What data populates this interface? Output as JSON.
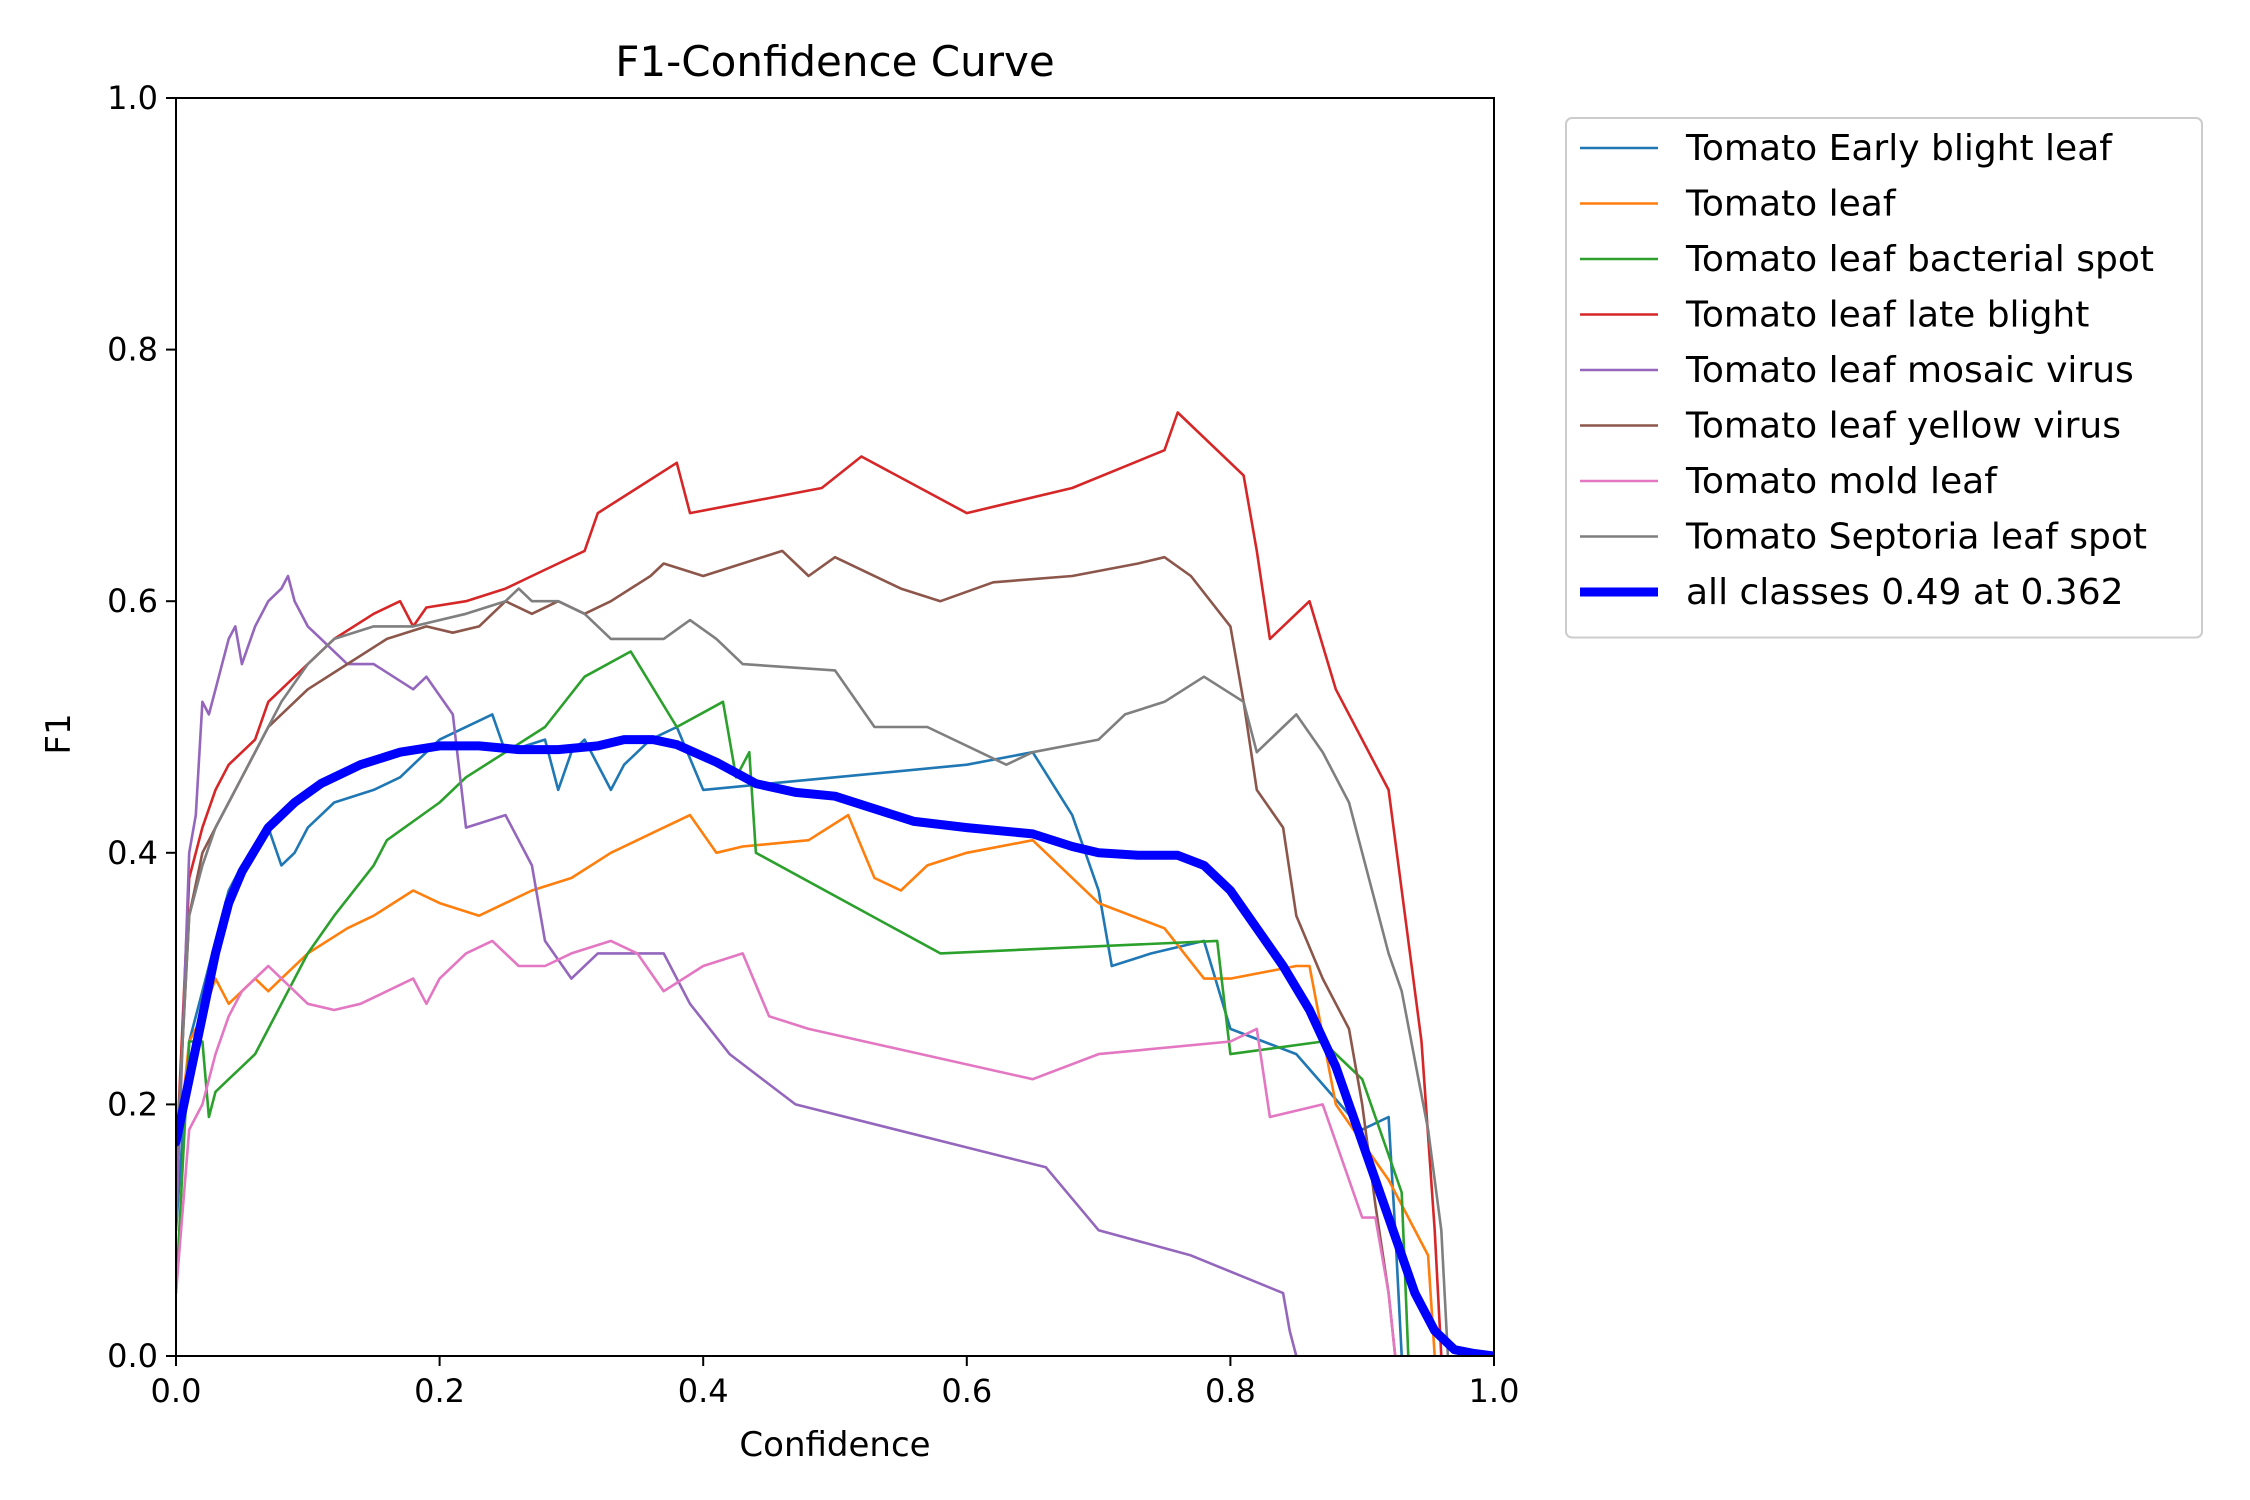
{
  "chart_data": {
    "type": "line",
    "title": "F1-Confidence Curve",
    "xlabel": "Confidence",
    "ylabel": "F1",
    "xlim": [
      0.0,
      1.0
    ],
    "ylim": [
      0.0,
      1.0
    ],
    "xticks": [
      "0.0",
      "0.2",
      "0.4",
      "0.6",
      "0.8",
      "1.0"
    ],
    "yticks": [
      "0.0",
      "0.2",
      "0.4",
      "0.6",
      "0.8",
      "1.0"
    ],
    "grid": false,
    "legend_position": "outside-right-top",
    "series": [
      {
        "name": "Tomato Early blight leaf",
        "color": "#1f77b4",
        "x": [
          0.0,
          0.01,
          0.02,
          0.03,
          0.04,
          0.05,
          0.06,
          0.07,
          0.08,
          0.09,
          0.1,
          0.11,
          0.12,
          0.15,
          0.17,
          0.2,
          0.24,
          0.25,
          0.28,
          0.29,
          0.3,
          0.31,
          0.33,
          0.34,
          0.36,
          0.38,
          0.4,
          0.45,
          0.5,
          0.6,
          0.65,
          0.68,
          0.7,
          0.71,
          0.74,
          0.78,
          0.8,
          0.85,
          0.9,
          0.92,
          0.925,
          0.93
        ],
        "y": [
          0.1,
          0.25,
          0.29,
          0.33,
          0.37,
          0.39,
          0.4,
          0.42,
          0.39,
          0.4,
          0.42,
          0.43,
          0.44,
          0.45,
          0.46,
          0.49,
          0.51,
          0.48,
          0.49,
          0.45,
          0.48,
          0.49,
          0.45,
          0.47,
          0.49,
          0.5,
          0.45,
          0.455,
          0.46,
          0.47,
          0.48,
          0.43,
          0.37,
          0.31,
          0.32,
          0.33,
          0.26,
          0.24,
          0.18,
          0.19,
          0.1,
          0.0
        ]
      },
      {
        "name": "Tomato leaf",
        "color": "#ff7f0e",
        "x": [
          0.0,
          0.01,
          0.02,
          0.03,
          0.04,
          0.05,
          0.06,
          0.07,
          0.08,
          0.1,
          0.13,
          0.15,
          0.18,
          0.2,
          0.23,
          0.25,
          0.27,
          0.3,
          0.33,
          0.35,
          0.37,
          0.39,
          0.41,
          0.43,
          0.48,
          0.51,
          0.53,
          0.55,
          0.57,
          0.6,
          0.65,
          0.7,
          0.75,
          0.78,
          0.8,
          0.85,
          0.86,
          0.88,
          0.92,
          0.95,
          0.955
        ],
        "y": [
          0.15,
          0.25,
          0.27,
          0.3,
          0.28,
          0.29,
          0.3,
          0.29,
          0.3,
          0.32,
          0.34,
          0.35,
          0.37,
          0.36,
          0.35,
          0.36,
          0.37,
          0.38,
          0.4,
          0.41,
          0.42,
          0.43,
          0.4,
          0.405,
          0.41,
          0.43,
          0.38,
          0.37,
          0.39,
          0.4,
          0.41,
          0.36,
          0.34,
          0.3,
          0.3,
          0.31,
          0.31,
          0.2,
          0.14,
          0.08,
          0.0
        ]
      },
      {
        "name": "Tomato leaf bacterial spot",
        "color": "#2ca02c",
        "x": [
          0.0,
          0.01,
          0.02,
          0.025,
          0.03,
          0.04,
          0.05,
          0.06,
          0.07,
          0.08,
          0.1,
          0.12,
          0.15,
          0.16,
          0.2,
          0.22,
          0.25,
          0.28,
          0.31,
          0.345,
          0.38,
          0.415,
          0.425,
          0.435,
          0.44,
          0.58,
          0.79,
          0.8,
          0.87,
          0.9,
          0.93,
          0.935
        ],
        "y": [
          0.05,
          0.25,
          0.25,
          0.19,
          0.21,
          0.22,
          0.23,
          0.24,
          0.26,
          0.28,
          0.32,
          0.35,
          0.39,
          0.41,
          0.44,
          0.46,
          0.48,
          0.5,
          0.54,
          0.56,
          0.5,
          0.52,
          0.46,
          0.48,
          0.4,
          0.32,
          0.33,
          0.24,
          0.25,
          0.22,
          0.13,
          0.0
        ]
      },
      {
        "name": "Tomato leaf late blight",
        "color": "#d62728",
        "x": [
          0.0,
          0.01,
          0.02,
          0.03,
          0.04,
          0.05,
          0.06,
          0.07,
          0.08,
          0.1,
          0.12,
          0.15,
          0.17,
          0.18,
          0.19,
          0.22,
          0.25,
          0.27,
          0.29,
          0.31,
          0.32,
          0.35,
          0.38,
          0.39,
          0.49,
          0.52,
          0.6,
          0.68,
          0.75,
          0.76,
          0.81,
          0.82,
          0.83,
          0.86,
          0.88,
          0.92,
          0.945,
          0.955,
          0.96
        ],
        "y": [
          0.15,
          0.38,
          0.42,
          0.45,
          0.47,
          0.48,
          0.49,
          0.52,
          0.53,
          0.55,
          0.57,
          0.59,
          0.6,
          0.58,
          0.595,
          0.6,
          0.61,
          0.62,
          0.63,
          0.64,
          0.67,
          0.69,
          0.71,
          0.67,
          0.69,
          0.715,
          0.67,
          0.69,
          0.72,
          0.75,
          0.7,
          0.64,
          0.57,
          0.6,
          0.53,
          0.45,
          0.25,
          0.1,
          0.0
        ]
      },
      {
        "name": "Tomato leaf mosaic virus",
        "color": "#9467bd",
        "x": [
          0.0,
          0.01,
          0.015,
          0.02,
          0.025,
          0.03,
          0.035,
          0.04,
          0.045,
          0.05,
          0.06,
          0.07,
          0.08,
          0.085,
          0.09,
          0.1,
          0.11,
          0.13,
          0.15,
          0.18,
          0.19,
          0.21,
          0.22,
          0.25,
          0.27,
          0.28,
          0.3,
          0.32,
          0.35,
          0.37,
          0.39,
          0.42,
          0.47,
          0.66,
          0.7,
          0.77,
          0.84,
          0.845,
          0.85
        ],
        "y": [
          0.1,
          0.4,
          0.43,
          0.52,
          0.51,
          0.53,
          0.55,
          0.57,
          0.58,
          0.55,
          0.58,
          0.6,
          0.61,
          0.62,
          0.6,
          0.58,
          0.57,
          0.55,
          0.55,
          0.53,
          0.54,
          0.51,
          0.42,
          0.43,
          0.39,
          0.33,
          0.3,
          0.32,
          0.32,
          0.32,
          0.28,
          0.24,
          0.2,
          0.15,
          0.1,
          0.08,
          0.05,
          0.02,
          0.0
        ]
      },
      {
        "name": "Tomato leaf yellow virus",
        "color": "#8c564b",
        "x": [
          0.0,
          0.01,
          0.02,
          0.03,
          0.04,
          0.05,
          0.06,
          0.07,
          0.08,
          0.1,
          0.13,
          0.16,
          0.19,
          0.21,
          0.23,
          0.25,
          0.27,
          0.29,
          0.31,
          0.33,
          0.36,
          0.37,
          0.4,
          0.46,
          0.48,
          0.5,
          0.55,
          0.58,
          0.62,
          0.68,
          0.73,
          0.75,
          0.77,
          0.8,
          0.81,
          0.82,
          0.84,
          0.85,
          0.87,
          0.89,
          0.9,
          0.91,
          0.92,
          0.925
        ],
        "y": [
          0.15,
          0.35,
          0.4,
          0.42,
          0.44,
          0.46,
          0.48,
          0.5,
          0.51,
          0.53,
          0.55,
          0.57,
          0.58,
          0.575,
          0.58,
          0.6,
          0.59,
          0.6,
          0.59,
          0.6,
          0.62,
          0.63,
          0.62,
          0.64,
          0.62,
          0.635,
          0.61,
          0.6,
          0.615,
          0.62,
          0.63,
          0.635,
          0.62,
          0.58,
          0.52,
          0.45,
          0.42,
          0.35,
          0.3,
          0.26,
          0.2,
          0.12,
          0.05,
          0.0
        ]
      },
      {
        "name": "Tomato mold leaf",
        "color": "#e377c2",
        "x": [
          0.0,
          0.01,
          0.02,
          0.03,
          0.04,
          0.05,
          0.06,
          0.07,
          0.08,
          0.09,
          0.1,
          0.12,
          0.14,
          0.16,
          0.18,
          0.19,
          0.2,
          0.22,
          0.24,
          0.26,
          0.28,
          0.3,
          0.33,
          0.35,
          0.37,
          0.4,
          0.43,
          0.45,
          0.48,
          0.65,
          0.7,
          0.8,
          0.82,
          0.83,
          0.87,
          0.9,
          0.91,
          0.92,
          0.925
        ],
        "y": [
          0.05,
          0.18,
          0.2,
          0.24,
          0.27,
          0.29,
          0.3,
          0.31,
          0.3,
          0.29,
          0.28,
          0.275,
          0.28,
          0.29,
          0.3,
          0.28,
          0.3,
          0.32,
          0.33,
          0.31,
          0.31,
          0.32,
          0.33,
          0.32,
          0.29,
          0.31,
          0.32,
          0.27,
          0.26,
          0.22,
          0.24,
          0.25,
          0.26,
          0.19,
          0.2,
          0.11,
          0.11,
          0.05,
          0.0
        ]
      },
      {
        "name": "Tomato Septoria leaf spot",
        "color": "#7f7f7f",
        "x": [
          0.0,
          0.01,
          0.02,
          0.03,
          0.04,
          0.05,
          0.06,
          0.08,
          0.1,
          0.12,
          0.15,
          0.18,
          0.22,
          0.25,
          0.26,
          0.27,
          0.29,
          0.31,
          0.33,
          0.37,
          0.39,
          0.41,
          0.43,
          0.5,
          0.53,
          0.57,
          0.63,
          0.65,
          0.7,
          0.72,
          0.75,
          0.78,
          0.81,
          0.82,
          0.84,
          0.85,
          0.87,
          0.89,
          0.9,
          0.91,
          0.92,
          0.93,
          0.95,
          0.96,
          0.965
        ],
        "y": [
          0.15,
          0.35,
          0.39,
          0.42,
          0.44,
          0.46,
          0.48,
          0.52,
          0.55,
          0.57,
          0.58,
          0.58,
          0.59,
          0.6,
          0.61,
          0.6,
          0.6,
          0.59,
          0.57,
          0.57,
          0.585,
          0.57,
          0.55,
          0.545,
          0.5,
          0.5,
          0.47,
          0.48,
          0.49,
          0.51,
          0.52,
          0.54,
          0.52,
          0.48,
          0.5,
          0.51,
          0.48,
          0.44,
          0.4,
          0.36,
          0.32,
          0.29,
          0.18,
          0.1,
          0.0
        ]
      },
      {
        "name": "all classes 0.49 at 0.362",
        "color": "#0000ff",
        "x": [
          0.0,
          0.01,
          0.02,
          0.03,
          0.04,
          0.05,
          0.07,
          0.09,
          0.11,
          0.14,
          0.17,
          0.2,
          0.23,
          0.26,
          0.29,
          0.32,
          0.34,
          0.362,
          0.38,
          0.41,
          0.44,
          0.47,
          0.5,
          0.53,
          0.56,
          0.6,
          0.65,
          0.68,
          0.7,
          0.73,
          0.76,
          0.78,
          0.8,
          0.82,
          0.84,
          0.86,
          0.88,
          0.9,
          0.92,
          0.94,
          0.955,
          0.97,
          0.985,
          1.0
        ],
        "y": [
          0.17,
          0.22,
          0.27,
          0.32,
          0.36,
          0.385,
          0.42,
          0.44,
          0.455,
          0.47,
          0.48,
          0.485,
          0.485,
          0.482,
          0.482,
          0.485,
          0.49,
          0.49,
          0.486,
          0.472,
          0.455,
          0.448,
          0.445,
          0.435,
          0.425,
          0.42,
          0.415,
          0.405,
          0.4,
          0.398,
          0.398,
          0.39,
          0.37,
          0.34,
          0.31,
          0.275,
          0.23,
          0.17,
          0.11,
          0.05,
          0.02,
          0.005,
          0.002,
          0.0
        ],
        "linewidth": "thick"
      }
    ]
  }
}
